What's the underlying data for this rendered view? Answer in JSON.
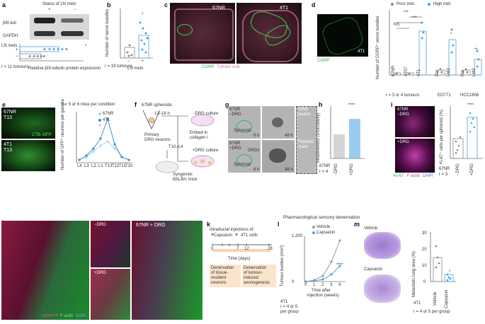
{
  "panels": {
    "a": {
      "letter": "a",
      "header": "Status of LN mets",
      "plus": "+",
      "minus": "−",
      "band1": "βIII-tub",
      "band2": "GAPDH",
      "ylabel": "LN mets",
      "y_plus": "+",
      "y_minus": "−",
      "xlabel": "Relative βIII-tubulin protein expression",
      "n": "r = 11 tumours",
      "star": "*"
    },
    "b": {
      "letter": "b",
      "ylabel": "Number of nerve bundles",
      "xlabel": "LN mets",
      "n": "r = 19 tumours",
      "cat_minus": "−",
      "cat_plus": "+",
      "star": "*"
    },
    "c": {
      "letter": "c",
      "label1": "67NR",
      "label2": "4T1",
      "legend1": "CGRP",
      "legend2": "Tumour bulk"
    },
    "d": {
      "letter": "d",
      "img_label": "4T1",
      "img_legend": "CGRP",
      "legend_poor": "Poor met.",
      "legend_high": "High met.",
      "ylabel": "Number of CGRP⁺ nerve bundles",
      "cats": [
        "67NR",
        "4T07",
        "4T1",
        "Par",
        "LM2",
        "Par",
        "LM2"
      ],
      "group1": "EO771",
      "group2": "HCC1806",
      "n": "r = 3 or 4 tumours",
      "ns": "NS",
      "s3a": "***",
      "s3b": "***",
      "s1": "*",
      "s2": "**"
    },
    "e": {
      "letter": "e",
      "img1a": "67NR",
      "img1b": "T13",
      "img2a": "4T1",
      "img2b": "T13",
      "legend_img": "CTB–GFP",
      "title": "r = 5 or 6 mice per condition",
      "ylabel": "Number of GFP⁺ neurons per ganglia",
      "series1": "67NR",
      "series2": "4T1",
      "xticks": [
        "L4",
        "L3",
        "L2",
        "L1",
        "T13",
        "T12",
        "T11",
        "T10"
      ],
      "star": "*"
    },
    "f": {
      "letter": "f",
      "sph": "67NR spheroids",
      "time": "12–18 h",
      "ndrg": "−DRG culture",
      "embed1": "Embed in",
      "embed2": "collagen I",
      "pdrg": "+DRG culture",
      "prim1": "Primary",
      "prim2": "DRG neurons",
      "lev": "T10–L4",
      "syn1": "Syngeneic",
      "syn2": "BALB/c mice"
    },
    "g": {
      "letter": "g",
      "l1a": "67NR",
      "l1b": "−DRG",
      "l2a": "67NR",
      "l2b": "+DRG",
      "sph": "Spheroid",
      "sph2": "Spheroid",
      "drgs": "DRGs",
      "t1": "6 h",
      "t2": "48 h",
      "t3": "6 h",
      "t4": "48 h",
      "drg_neuron1": "DRG",
      "drg_neuron2": "neuron",
      "fil1": "Filament",
      "fil2": "trace"
    },
    "h": {
      "letter": "h",
      "ylabel": "Invasiveness (1/circularity)",
      "cats": [
        "−DRG",
        "+DRG"
      ],
      "n1": "67NR",
      "n2": "r = 4",
      "star": "****"
    },
    "i": {
      "letter": "i",
      "l1a": "67NR",
      "l1b": "−DRG",
      "l2": "+DRG",
      "leg1": "Ki-67",
      "leg2": "F-actin",
      "leg3": "DAPI",
      "ylabel": "Ki-67⁺ cells per spheroid (%)",
      "cats": [
        "−DRG",
        "+DRG"
      ],
      "n1": "67NR",
      "n2": "r = 3",
      "star": "****"
    },
    "j": {
      "letter": "j",
      "sub1": "−DRG",
      "sub2": "+DRG",
      "sub3": "67NR + DRG",
      "leg1": "mCh⁶⁷ᴺᴿ",
      "leg2": "F-actin",
      "leg3": "DAPI"
    },
    "k": {
      "letter": "k",
      "title": "Pharmacological sensory denervation",
      "intra": "Intraductal injections of:",
      "caps": "Capsaicin",
      "cells": "4T1 cells",
      "xticks": [
        "0",
        "",
        "",
        "7",
        "12",
        "",
        "28"
      ],
      "xlabel": "Time (days)",
      "box1a": "Denervation",
      "box1b": "of tissue-",
      "box1c": "resident",
      "box1d": "neurons",
      "box2a": "Denervation",
      "box2b": "of tumour-",
      "box2c": "induced",
      "box2d": "axonogenesis"
    },
    "l": {
      "letter": "l",
      "veh": "Vehicle",
      "cap": "Capsaicin",
      "ylabel": "Tumour burden (mm³)",
      "xlabel1": "Time after",
      "xlabel2": "injection (weeks)",
      "n1": "4T1",
      "n2": "r = 4 or 5",
      "n3": "per group",
      "star": "****",
      "yticks": [
        "0",
        "200",
        "400",
        "600",
        "800",
        "1,000",
        "1,200"
      ],
      "xticks": [
        "0",
        "1",
        "2",
        "3",
        "4"
      ]
    },
    "m": {
      "letter": "m",
      "veh": "Vehicle",
      "cap": "Capsaicin",
      "ylabel": "Metastatic lung area (%)",
      "n1": "4T1",
      "n2": "r = 4 or 5 per group",
      "cats": [
        "Vehicle",
        "Capsaicin"
      ],
      "star": "*",
      "yticks": [
        "0",
        "10",
        "20",
        "30"
      ]
    }
  },
  "chart_data": [
    {
      "type": "scatter",
      "title": "",
      "xlabel": "Relative βIII-tubulin protein expression",
      "ylabel": "LN mets",
      "categories": [
        "−",
        "+"
      ],
      "series": [
        {
          "name": "−",
          "values": [
            0.55,
            0.7,
            0.8,
            0.9,
            1.0
          ]
        },
        {
          "name": "+",
          "values": [
            1.3,
            1.5,
            1.7,
            1.9,
            2.1,
            2.3
          ]
        }
      ]
    },
    {
      "type": "bar",
      "title": "",
      "xlabel": "LN mets",
      "ylabel": "Number of nerve bundles",
      "categories": [
        "−",
        "+"
      ],
      "values": [
        1.0,
        3.0
      ],
      "ylim": [
        0,
        8
      ],
      "yticks": [
        0,
        2,
        4,
        6,
        8
      ]
    },
    {
      "type": "bar",
      "title": "",
      "ylabel": "Number of CGRP⁺ nerve bundles",
      "categories": [
        "67NR",
        "4T07",
        "4T1",
        "Par",
        "LM2",
        "Par",
        "LM2"
      ],
      "values": [
        0.5,
        0.5,
        13.5,
        1.5,
        11.0,
        1.5,
        5.0
      ],
      "ylim": [
        0,
        20
      ],
      "yticks": [
        0,
        5,
        10,
        15,
        20
      ]
    },
    {
      "type": "line",
      "title": "r = 5 or 6 mice per condition",
      "ylabel": "Number of GFP⁺ neurons per ganglia",
      "categories": [
        "L4",
        "L3",
        "L2",
        "L1",
        "T13",
        "T12",
        "T11",
        "T10"
      ],
      "ylim": [
        0,
        40
      ],
      "yticks": [
        0,
        10,
        20,
        30,
        40
      ],
      "series": [
        {
          "name": "67NR",
          "values": [
            2,
            4,
            8,
            12,
            15,
            11,
            5,
            2
          ]
        },
        {
          "name": "4T1",
          "values": [
            2,
            6,
            10,
            18,
            35,
            14,
            5,
            2
          ]
        }
      ]
    },
    {
      "type": "scatter",
      "title": "",
      "ylabel": "Invasiveness (1/circularity)",
      "categories": [
        "−DRG",
        "+DRG"
      ],
      "ylim": [
        0,
        60
      ],
      "yticks": [
        0,
        20,
        40,
        60
      ],
      "values": [
        12,
        28
      ]
    },
    {
      "type": "bar",
      "title": "",
      "ylabel": "Ki-67⁺ cells per spheroid (%)",
      "categories": [
        "−DRG",
        "+DRG"
      ],
      "values": [
        5,
        11
      ],
      "ylim": [
        0,
        20
      ],
      "yticks": [
        0,
        5,
        10,
        15,
        20
      ]
    },
    {
      "type": "line",
      "title": "",
      "xlabel": "Time after injection (weeks)",
      "ylabel": "Tumour burden (mm³)",
      "x": [
        0,
        1,
        2,
        3,
        4
      ],
      "ylim": [
        0,
        1200
      ],
      "yticks": [
        0,
        200,
        400,
        600,
        800,
        1000,
        1200
      ],
      "series": [
        {
          "name": "Vehicle",
          "values": [
            0,
            30,
            150,
            500,
            1000
          ]
        },
        {
          "name": "Capsaicin",
          "values": [
            0,
            20,
            60,
            180,
            400
          ]
        }
      ]
    },
    {
      "type": "bar",
      "title": "",
      "ylabel": "Metastatic lung area (%)",
      "categories": [
        "Vehicle",
        "Capsaicin"
      ],
      "values": [
        15,
        4
      ],
      "ylim": [
        0,
        30
      ],
      "yticks": [
        0,
        10,
        20,
        30
      ]
    }
  ],
  "colors": {
    "blue": "#4aa3df",
    "lightblue": "#a8d4f0",
    "grey": "#9a9a9a",
    "green": "#39d353",
    "pink": "#e58ab0",
    "magenta": "#c43fa8"
  }
}
